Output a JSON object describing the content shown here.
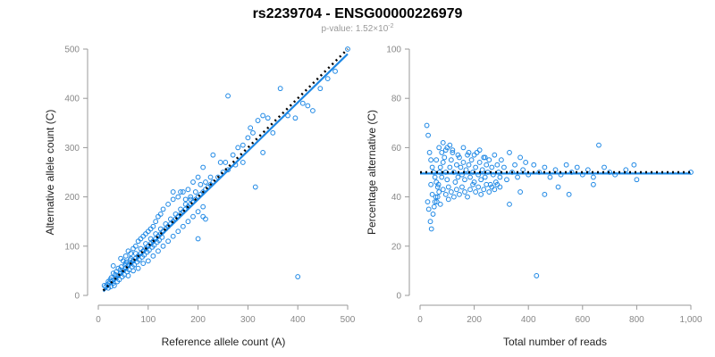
{
  "header": {
    "title": "rs2239704 - ENSG00000226979",
    "pvalue_prefix": "p-value: 1.52×10",
    "pvalue_exponent": "-2"
  },
  "colors": {
    "points": "#1e88e5",
    "fit": "#1e88e5",
    "reference": "#000000"
  },
  "chart_data": [
    {
      "type": "scatter",
      "xlabel": "Reference allele count (A)",
      "ylabel": "Alternative allele count (C)",
      "xlim": [
        0,
        500
      ],
      "ylim": [
        0,
        500
      ],
      "xticks": [
        0,
        100,
        200,
        300,
        400,
        500
      ],
      "yticks": [
        0,
        100,
        200,
        300,
        400,
        500
      ],
      "xtick_labels": [
        "0",
        "100",
        "200",
        "300",
        "400",
        "500"
      ],
      "ytick_labels": [
        "0",
        "100",
        "200",
        "300",
        "400",
        "500"
      ],
      "grid": false,
      "points": [
        [
          12,
          20
        ],
        [
          15,
          18
        ],
        [
          18,
          22
        ],
        [
          20,
          15
        ],
        [
          22,
          25
        ],
        [
          25,
          18
        ],
        [
          28,
          30
        ],
        [
          30,
          25
        ],
        [
          32,
          20
        ],
        [
          35,
          35
        ],
        [
          38,
          28
        ],
        [
          40,
          40
        ],
        [
          42,
          32
        ],
        [
          45,
          45
        ],
        [
          48,
          38
        ],
        [
          50,
          50
        ],
        [
          52,
          42
        ],
        [
          55,
          55
        ],
        [
          58,
          48
        ],
        [
          60,
          60
        ],
        [
          62,
          52
        ],
        [
          65,
          65
        ],
        [
          68,
          58
        ],
        [
          70,
          70
        ],
        [
          72,
          62
        ],
        [
          75,
          75
        ],
        [
          78,
          68
        ],
        [
          80,
          80
        ],
        [
          82,
          72
        ],
        [
          85,
          85
        ],
        [
          88,
          78
        ],
        [
          90,
          90
        ],
        [
          92,
          82
        ],
        [
          95,
          95
        ],
        [
          98,
          88
        ],
        [
          100,
          100
        ],
        [
          102,
          92
        ],
        [
          105,
          105
        ],
        [
          108,
          98
        ],
        [
          110,
          110
        ],
        [
          112,
          102
        ],
        [
          115,
          115
        ],
        [
          118,
          108
        ],
        [
          120,
          120
        ],
        [
          122,
          112
        ],
        [
          125,
          125
        ],
        [
          128,
          118
        ],
        [
          130,
          130
        ],
        [
          135,
          135
        ],
        [
          140,
          140
        ],
        [
          145,
          145
        ],
        [
          150,
          150
        ],
        [
          155,
          155
        ],
        [
          160,
          160
        ],
        [
          165,
          165
        ],
        [
          170,
          170
        ],
        [
          175,
          175
        ],
        [
          180,
          180
        ],
        [
          185,
          185
        ],
        [
          190,
          190
        ],
        [
          195,
          195
        ],
        [
          200,
          200
        ],
        [
          205,
          205
        ],
        [
          210,
          210
        ],
        [
          215,
          215
        ],
        [
          220,
          220
        ],
        [
          225,
          225
        ],
        [
          230,
          230
        ],
        [
          240,
          240
        ],
        [
          250,
          250
        ],
        [
          30,
          45
        ],
        [
          40,
          55
        ],
        [
          50,
          70
        ],
        [
          55,
          80
        ],
        [
          60,
          90
        ],
        [
          65,
          85
        ],
        [
          70,
          95
        ],
        [
          75,
          100
        ],
        [
          80,
          110
        ],
        [
          85,
          115
        ],
        [
          90,
          120
        ],
        [
          95,
          125
        ],
        [
          100,
          130
        ],
        [
          105,
          135
        ],
        [
          110,
          140
        ],
        [
          115,
          150
        ],
        [
          120,
          160
        ],
        [
          125,
          165
        ],
        [
          130,
          175
        ],
        [
          140,
          185
        ],
        [
          150,
          195
        ],
        [
          160,
          200
        ],
        [
          170,
          210
        ],
        [
          180,
          215
        ],
        [
          60,
          40
        ],
        [
          70,
          50
        ],
        [
          80,
          55
        ],
        [
          90,
          65
        ],
        [
          100,
          70
        ],
        [
          110,
          80
        ],
        [
          120,
          90
        ],
        [
          130,
          100
        ],
        [
          140,
          110
        ],
        [
          150,
          120
        ],
        [
          160,
          130
        ],
        [
          170,
          140
        ],
        [
          180,
          150
        ],
        [
          190,
          160
        ],
        [
          200,
          170
        ],
        [
          210,
          180
        ],
        [
          30,
          60
        ],
        [
          45,
          75
        ],
        [
          55,
          65
        ],
        [
          65,
          75
        ],
        [
          75,
          85
        ],
        [
          85,
          95
        ],
        [
          95,
          105
        ],
        [
          105,
          115
        ],
        [
          115,
          125
        ],
        [
          125,
          135
        ],
        [
          135,
          145
        ],
        [
          145,
          155
        ],
        [
          155,
          165
        ],
        [
          165,
          175
        ],
        [
          175,
          185
        ],
        [
          185,
          195
        ],
        [
          195,
          210
        ],
        [
          205,
          225
        ],
        [
          215,
          230
        ],
        [
          225,
          240
        ],
        [
          20,
          28
        ],
        [
          24,
          32
        ],
        [
          26,
          36
        ],
        [
          34,
          42
        ],
        [
          36,
          48
        ],
        [
          44,
          52
        ],
        [
          46,
          58
        ],
        [
          54,
          62
        ],
        [
          56,
          68
        ],
        [
          64,
          72
        ],
        [
          255,
          270
        ],
        [
          260,
          255
        ],
        [
          270,
          285
        ],
        [
          275,
          265
        ],
        [
          280,
          300
        ],
        [
          290,
          305
        ],
        [
          300,
          320
        ],
        [
          305,
          340
        ],
        [
          310,
          330
        ],
        [
          320,
          355
        ],
        [
          330,
          365
        ],
        [
          340,
          360
        ],
        [
          350,
          330
        ],
        [
          200,
          115
        ],
        [
          210,
          160
        ],
        [
          215,
          155
        ],
        [
          260,
          405
        ],
        [
          290,
          270
        ],
        [
          315,
          220
        ],
        [
          330,
          290
        ],
        [
          365,
          420
        ],
        [
          380,
          365
        ],
        [
          395,
          360
        ],
        [
          410,
          390
        ],
        [
          420,
          385
        ],
        [
          430,
          375
        ],
        [
          445,
          420
        ],
        [
          460,
          440
        ],
        [
          475,
          455
        ],
        [
          500,
          500
        ],
        [
          400,
          38
        ],
        [
          200,
          240
        ],
        [
          210,
          260
        ],
        [
          230,
          285
        ],
        [
          245,
          270
        ],
        [
          190,
          230
        ],
        [
          185,
          200
        ],
        [
          175,
          195
        ],
        [
          165,
          210
        ],
        [
          150,
          210
        ]
      ],
      "fit_line": [
        [
          10,
          8
        ],
        [
          500,
          490
        ]
      ],
      "reference_line": [
        [
          10,
          10
        ],
        [
          500,
          500
        ]
      ]
    },
    {
      "type": "scatter",
      "xlabel": "Total number of reads",
      "ylabel": "Percentage alternative (C)",
      "xlim": [
        0,
        1000
      ],
      "ylim": [
        0,
        100
      ],
      "xticks": [
        0,
        200,
        400,
        600,
        800,
        1000
      ],
      "yticks": [
        0,
        20,
        40,
        60,
        80,
        100
      ],
      "xtick_labels": [
        "0",
        "200",
        "400",
        "600",
        "800",
        "1,000"
      ],
      "ytick_labels": [
        "0",
        "20",
        "40",
        "60",
        "80",
        "100"
      ],
      "grid": false,
      "points": [
        [
          25,
          69
        ],
        [
          30,
          65
        ],
        [
          35,
          58
        ],
        [
          40,
          55
        ],
        [
          45,
          52
        ],
        [
          50,
          50
        ],
        [
          55,
          48
        ],
        [
          60,
          46
        ],
        [
          65,
          44
        ],
        [
          70,
          42
        ],
        [
          28,
          38
        ],
        [
          32,
          35
        ],
        [
          38,
          30
        ],
        [
          42,
          27
        ],
        [
          48,
          33
        ],
        [
          52,
          36
        ],
        [
          58,
          40
        ],
        [
          62,
          38
        ],
        [
          68,
          45
        ],
        [
          72,
          50
        ],
        [
          75,
          52
        ],
        [
          80,
          48
        ],
        [
          85,
          54
        ],
        [
          90,
          56
        ],
        [
          95,
          50
        ],
        [
          100,
          47
        ],
        [
          105,
          44
        ],
        [
          110,
          52
        ],
        [
          115,
          55
        ],
        [
          120,
          58
        ],
        [
          125,
          50
        ],
        [
          130,
          46
        ],
        [
          135,
          53
        ],
        [
          140,
          48
        ],
        [
          145,
          56
        ],
        [
          150,
          52
        ],
        [
          155,
          49
        ],
        [
          160,
          54
        ],
        [
          165,
          47
        ],
        [
          170,
          51
        ],
        [
          175,
          57
        ],
        [
          180,
          53
        ],
        [
          185,
          48
        ],
        [
          190,
          55
        ],
        [
          195,
          50
        ],
        [
          200,
          46
        ],
        [
          205,
          52
        ],
        [
          210,
          58
        ],
        [
          215,
          49
        ],
        [
          220,
          54
        ],
        [
          225,
          47
        ],
        [
          230,
          51
        ],
        [
          235,
          56
        ],
        [
          240,
          48
        ],
        [
          245,
          53
        ],
        [
          250,
          50
        ],
        [
          255,
          55
        ],
        [
          260,
          45
        ],
        [
          265,
          52
        ],
        [
          270,
          49
        ],
        [
          275,
          57
        ],
        [
          280,
          46
        ],
        [
          285,
          53
        ],
        [
          290,
          50
        ],
        [
          295,
          48
        ],
        [
          300,
          55
        ],
        [
          310,
          52
        ],
        [
          320,
          47
        ],
        [
          330,
          58
        ],
        [
          340,
          50
        ],
        [
          350,
          53
        ],
        [
          360,
          48
        ],
        [
          370,
          56
        ],
        [
          380,
          51
        ],
        [
          390,
          54
        ],
        [
          400,
          49
        ],
        [
          420,
          53
        ],
        [
          440,
          50
        ],
        [
          460,
          52
        ],
        [
          480,
          48
        ],
        [
          500,
          51
        ],
        [
          520,
          49
        ],
        [
          540,
          53
        ],
        [
          560,
          50
        ],
        [
          580,
          52
        ],
        [
          600,
          49
        ],
        [
          620,
          51
        ],
        [
          640,
          48
        ],
        [
          660,
          61
        ],
        [
          680,
          52
        ],
        [
          700,
          50
        ],
        [
          720,
          49
        ],
        [
          760,
          51
        ],
        [
          790,
          53
        ],
        [
          800,
          47
        ],
        [
          1000,
          50
        ],
        [
          430,
          8
        ],
        [
          330,
          37
        ],
        [
          370,
          42
        ],
        [
          460,
          41
        ],
        [
          510,
          44
        ],
        [
          550,
          41
        ],
        [
          640,
          45
        ],
        [
          40,
          45
        ],
        [
          45,
          41
        ],
        [
          55,
          38
        ],
        [
          65,
          40
        ],
        [
          75,
          37
        ],
        [
          85,
          43
        ],
        [
          95,
          41
        ],
        [
          105,
          39
        ],
        [
          115,
          42
        ],
        [
          125,
          40
        ],
        [
          135,
          43
        ],
        [
          145,
          41
        ],
        [
          155,
          44
        ],
        [
          165,
          42
        ],
        [
          175,
          40
        ],
        [
          185,
          43
        ],
        [
          195,
          45
        ],
        [
          205,
          42
        ],
        [
          215,
          44
        ],
        [
          225,
          41
        ],
        [
          235,
          43
        ],
        [
          245,
          45
        ],
        [
          255,
          42
        ],
        [
          265,
          44
        ],
        [
          275,
          43
        ],
        [
          285,
          45
        ],
        [
          295,
          44
        ],
        [
          60,
          55
        ],
        [
          80,
          58
        ],
        [
          100,
          60
        ],
        [
          120,
          59
        ],
        [
          140,
          57
        ],
        [
          160,
          60
        ],
        [
          180,
          58
        ],
        [
          200,
          57
        ],
        [
          220,
          59
        ],
        [
          240,
          56
        ],
        [
          85,
          62
        ],
        [
          70,
          60
        ],
        [
          95,
          59
        ],
        [
          110,
          61
        ]
      ],
      "fit_line": [
        [
          0,
          49.5
        ],
        [
          1000,
          49.5
        ]
      ],
      "reference_line": [
        [
          0,
          50
        ],
        [
          1000,
          50
        ]
      ]
    }
  ]
}
